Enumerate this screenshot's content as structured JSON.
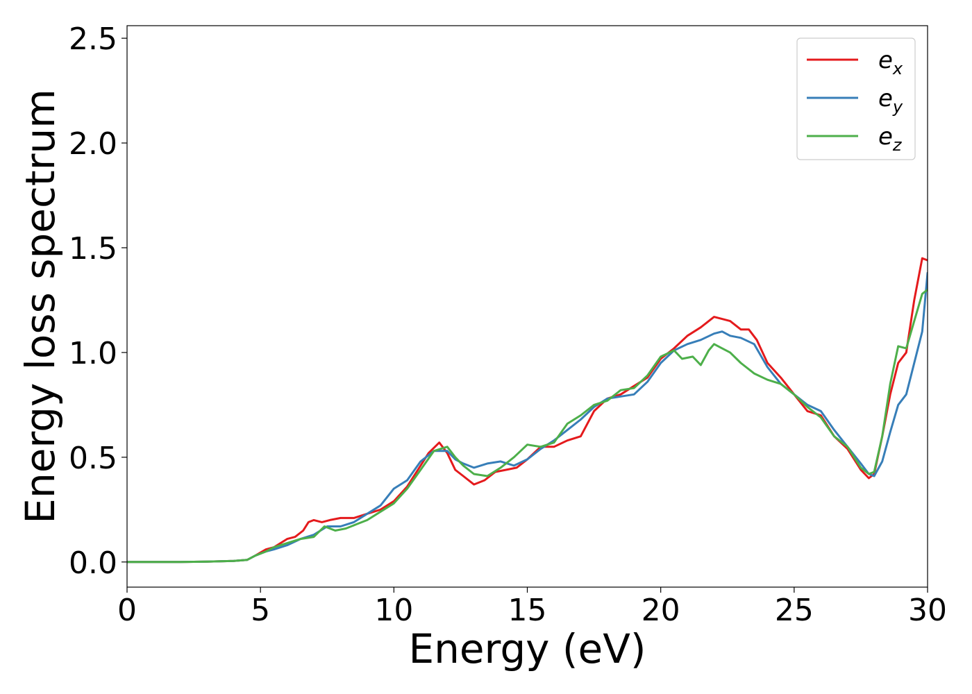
{
  "chart_data": {
    "type": "line",
    "xlabel": "Energy (eV)",
    "ylabel": "Energy loss spectrum",
    "xlim": [
      0,
      30
    ],
    "ylim": [
      -0.12,
      2.56
    ],
    "xticks": [
      0,
      5,
      10,
      15,
      20,
      25,
      30
    ],
    "xtick_labels": [
      "0",
      "5",
      "10",
      "15",
      "20",
      "25",
      "30"
    ],
    "yticks": [
      0.0,
      0.5,
      1.0,
      1.5,
      2.0,
      2.5
    ],
    "ytick_labels": [
      "0.0",
      "0.5",
      "1.0",
      "1.5",
      "2.0",
      "2.5"
    ],
    "grid": false,
    "legend_position": "top-right",
    "series": [
      {
        "name": "e",
        "subscript": "x",
        "color": "#e41a1c",
        "x": [
          0,
          1,
          2,
          3,
          4,
          4.5,
          4.8,
          5.2,
          5.5,
          6.0,
          6.3,
          6.6,
          6.8,
          7.0,
          7.3,
          7.6,
          8.0,
          8.5,
          9.0,
          9.5,
          10.0,
          10.5,
          11.0,
          11.3,
          11.7,
          12.0,
          12.3,
          12.6,
          13.0,
          13.4,
          13.8,
          14.2,
          14.6,
          15.0,
          15.5,
          16.0,
          16.5,
          17.0,
          17.5,
          18.0,
          18.5,
          19.0,
          19.5,
          20.0,
          20.5,
          21.0,
          21.5,
          22.0,
          22.3,
          22.6,
          23.0,
          23.3,
          23.6,
          24.0,
          24.5,
          25.0,
          25.5,
          26.0,
          26.5,
          27.0,
          27.5,
          27.8,
          28.0,
          28.3,
          28.6,
          28.9,
          29.2,
          29.5,
          29.8,
          30.0
        ],
        "y": [
          0.0,
          0.0,
          0.0,
          0.002,
          0.005,
          0.01,
          0.03,
          0.06,
          0.07,
          0.11,
          0.12,
          0.15,
          0.19,
          0.2,
          0.19,
          0.2,
          0.21,
          0.21,
          0.23,
          0.25,
          0.29,
          0.36,
          0.46,
          0.52,
          0.57,
          0.52,
          0.44,
          0.41,
          0.37,
          0.39,
          0.43,
          0.44,
          0.45,
          0.49,
          0.55,
          0.55,
          0.58,
          0.6,
          0.72,
          0.78,
          0.8,
          0.84,
          0.88,
          0.97,
          1.02,
          1.08,
          1.12,
          1.17,
          1.16,
          1.15,
          1.11,
          1.11,
          1.06,
          0.95,
          0.88,
          0.8,
          0.72,
          0.7,
          0.6,
          0.54,
          0.44,
          0.4,
          0.42,
          0.6,
          0.8,
          0.95,
          1.0,
          1.25,
          1.45,
          1.44
        ]
      },
      {
        "name": "e",
        "subscript": "y",
        "color": "#377eb8",
        "x": [
          0,
          1,
          2,
          3,
          4,
          4.5,
          4.8,
          5.2,
          5.5,
          6.0,
          6.5,
          7.0,
          7.5,
          8.0,
          8.5,
          9.0,
          9.5,
          10.0,
          10.5,
          11.0,
          11.5,
          12.0,
          12.3,
          12.6,
          13.0,
          13.5,
          14.0,
          14.5,
          15.0,
          15.5,
          16.0,
          16.5,
          17.0,
          17.5,
          18.0,
          18.5,
          19.0,
          19.5,
          20.0,
          20.5,
          21.0,
          21.5,
          22.0,
          22.3,
          22.6,
          23.0,
          23.5,
          24.0,
          24.5,
          25.0,
          25.5,
          26.0,
          26.5,
          27.0,
          27.5,
          27.8,
          28.0,
          28.3,
          28.6,
          28.9,
          29.2,
          29.5,
          29.8,
          30.0
        ],
        "y": [
          0.0,
          0.0,
          0.0,
          0.002,
          0.005,
          0.01,
          0.03,
          0.05,
          0.06,
          0.08,
          0.11,
          0.13,
          0.17,
          0.17,
          0.19,
          0.23,
          0.27,
          0.35,
          0.39,
          0.48,
          0.53,
          0.53,
          0.49,
          0.47,
          0.45,
          0.47,
          0.48,
          0.46,
          0.49,
          0.54,
          0.58,
          0.63,
          0.68,
          0.74,
          0.78,
          0.79,
          0.8,
          0.86,
          0.95,
          1.01,
          1.04,
          1.06,
          1.09,
          1.1,
          1.08,
          1.07,
          1.04,
          0.93,
          0.85,
          0.8,
          0.75,
          0.72,
          0.63,
          0.55,
          0.47,
          0.42,
          0.41,
          0.48,
          0.62,
          0.75,
          0.8,
          0.95,
          1.1,
          1.38
        ]
      },
      {
        "name": "e",
        "subscript": "z",
        "color": "#4daf4a",
        "x": [
          0,
          1,
          2,
          3,
          4,
          4.5,
          4.8,
          5.2,
          5.5,
          6.0,
          6.5,
          7.0,
          7.4,
          7.8,
          8.2,
          8.6,
          9.0,
          9.5,
          10.0,
          10.5,
          11.0,
          11.5,
          12.0,
          12.3,
          12.6,
          13.0,
          13.5,
          14.0,
          14.5,
          15.0,
          15.5,
          16.0,
          16.5,
          17.0,
          17.5,
          18.0,
          18.5,
          19.0,
          19.5,
          20.0,
          20.5,
          20.8,
          21.2,
          21.5,
          21.8,
          22.0,
          22.3,
          22.6,
          23.0,
          23.5,
          24.0,
          24.5,
          25.0,
          25.5,
          26.0,
          26.5,
          27.0,
          27.5,
          27.8,
          28.0,
          28.3,
          28.6,
          28.9,
          29.2,
          29.5,
          29.8,
          30.0
        ],
        "y": [
          0.0,
          0.0,
          0.0,
          0.002,
          0.005,
          0.01,
          0.03,
          0.05,
          0.07,
          0.09,
          0.11,
          0.12,
          0.17,
          0.15,
          0.16,
          0.18,
          0.2,
          0.24,
          0.28,
          0.35,
          0.44,
          0.53,
          0.55,
          0.5,
          0.46,
          0.42,
          0.41,
          0.45,
          0.5,
          0.56,
          0.55,
          0.57,
          0.66,
          0.7,
          0.75,
          0.77,
          0.82,
          0.83,
          0.89,
          0.98,
          1.01,
          0.97,
          0.98,
          0.94,
          1.01,
          1.04,
          1.02,
          1.0,
          0.95,
          0.9,
          0.87,
          0.85,
          0.8,
          0.74,
          0.69,
          0.6,
          0.55,
          0.45,
          0.42,
          0.43,
          0.6,
          0.85,
          1.03,
          1.02,
          1.15,
          1.28,
          1.3
        ]
      }
    ]
  }
}
